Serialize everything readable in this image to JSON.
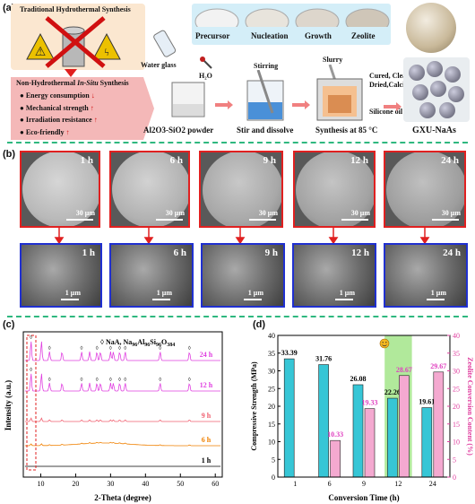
{
  "panels": {
    "a": "(a)",
    "b": "(b)",
    "c": "(c)",
    "d": "(d)"
  },
  "panel_a": {
    "traditional_title": "Traditional Hydrothermal Synthesis",
    "nonhydro_title_pre": "Non-Hydrothermal ",
    "nonhydro_title_em": "In-Situ",
    "nonhydro_title_post": " Synthesis",
    "benefits": [
      {
        "text": "Energy consumption",
        "arrow": "↓"
      },
      {
        "text": "Mechanical strength",
        "arrow": "↑"
      },
      {
        "text": "Irradiation resistance",
        "arrow": "↑"
      },
      {
        "text": "Eco-friendly",
        "arrow": "↑"
      }
    ],
    "stages": [
      "Precursor",
      "Nucleation",
      "Growth",
      "Zeolite"
    ],
    "water_glass": "Water glass",
    "h2o": "H₂O",
    "stirring": "Stirring",
    "slurry": "Slurry",
    "post_process": "Cured, Cleaned, Dried,Calcined",
    "silicone_oil": "Silicone oil",
    "step1": "Al2O3-SiO2 powder",
    "step2": "Stir and dissolve",
    "step3": "Synthesis at 85 °C",
    "product": "GXU-NaAs"
  },
  "panel_b": {
    "times": [
      "1 h",
      "6 h",
      "9 h",
      "12 h",
      "24 h"
    ],
    "scale_top": "30 μm",
    "scale_bottom": "1 μm"
  },
  "chart_data": [
    {
      "type": "line",
      "title": "",
      "xlabel": "2-Theta (degree)",
      "ylabel": "Intensity (a.u.)",
      "xlim": [
        5,
        62
      ],
      "xticks": [
        10,
        20,
        30,
        40,
        50,
        60
      ],
      "legend": "◊ NaA, Na96Al96Si96O384",
      "legend_prefix": "◊ NaA, Na",
      "series": [
        {
          "name": "24 h",
          "color": "#e040e0"
        },
        {
          "name": "12 h",
          "color": "#e040e0"
        },
        {
          "name": "9 h",
          "color": "#f06070"
        },
        {
          "name": "6 h",
          "color": "#f08000"
        },
        {
          "name": "1 h",
          "color": "#000000"
        }
      ],
      "peak_positions": [
        7.2,
        10.2,
        12.5,
        16.1,
        21.7,
        24.0,
        26.1,
        27.1,
        30.0,
        30.8,
        32.6,
        34.2,
        44.2,
        52.6
      ]
    },
    {
      "type": "bar",
      "title": "",
      "xlabel": "Conversion Time (h)",
      "categories": [
        "1",
        "6",
        "9",
        "12",
        "24"
      ],
      "ylabel": "Compressive Strength (MPa)",
      "ylim": [
        0,
        40
      ],
      "yticks": [
        0,
        5,
        10,
        15,
        20,
        25,
        30,
        35,
        40
      ],
      "ylabel_right": "Zeolite Conversion Content (%)",
      "ylim_right": [
        0,
        40
      ],
      "yticks_right": [
        0,
        5,
        10,
        15,
        20,
        25,
        30,
        35,
        40
      ],
      "series": [
        {
          "name": "Compressive Strength",
          "axis": "left",
          "color": "#36c6d6",
          "values": [
            33.39,
            31.76,
            26.08,
            22.26,
            19.61
          ],
          "labels": [
            "33.39",
            "31.76",
            "26.08",
            "22.26",
            "19.61"
          ]
        },
        {
          "name": "Zeolite Conversion Content",
          "axis": "right",
          "color": "#f4a9d0",
          "values": [
            null,
            10.33,
            19.33,
            28.67,
            29.67
          ],
          "labels": [
            "",
            "10.33",
            "19.33",
            "28.67",
            "29.67"
          ]
        }
      ],
      "highlight_category": "12",
      "highlight_color": "#90e070"
    }
  ]
}
